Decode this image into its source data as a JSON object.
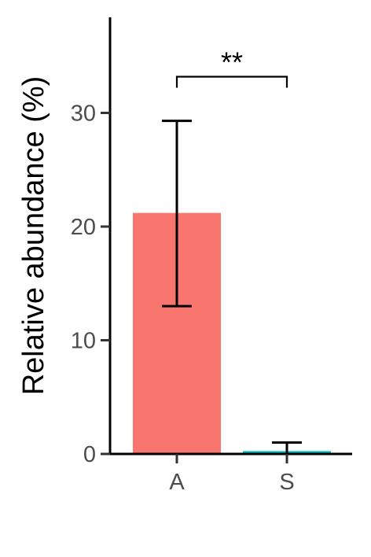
{
  "chart_data": {
    "type": "bar",
    "categories": [
      "A",
      "S"
    ],
    "values": [
      21.2,
      0.25
    ],
    "error_bars": [
      {
        "lower": 13.0,
        "upper": 29.3
      },
      {
        "lower": 0.0,
        "upper": 1.0
      }
    ],
    "colors": [
      "#F8766D",
      "#00BFC4"
    ],
    "title": "",
    "xlabel": "",
    "ylabel": "Relative abundance (%)",
    "ylim": [
      0,
      38
    ],
    "yticks": [
      "0",
      "10",
      "20",
      "30"
    ],
    "grid": false,
    "legend": "none",
    "annotations": [
      {
        "text": "**",
        "between": [
          "A",
          "S"
        ],
        "y": 33.6
      }
    ]
  }
}
